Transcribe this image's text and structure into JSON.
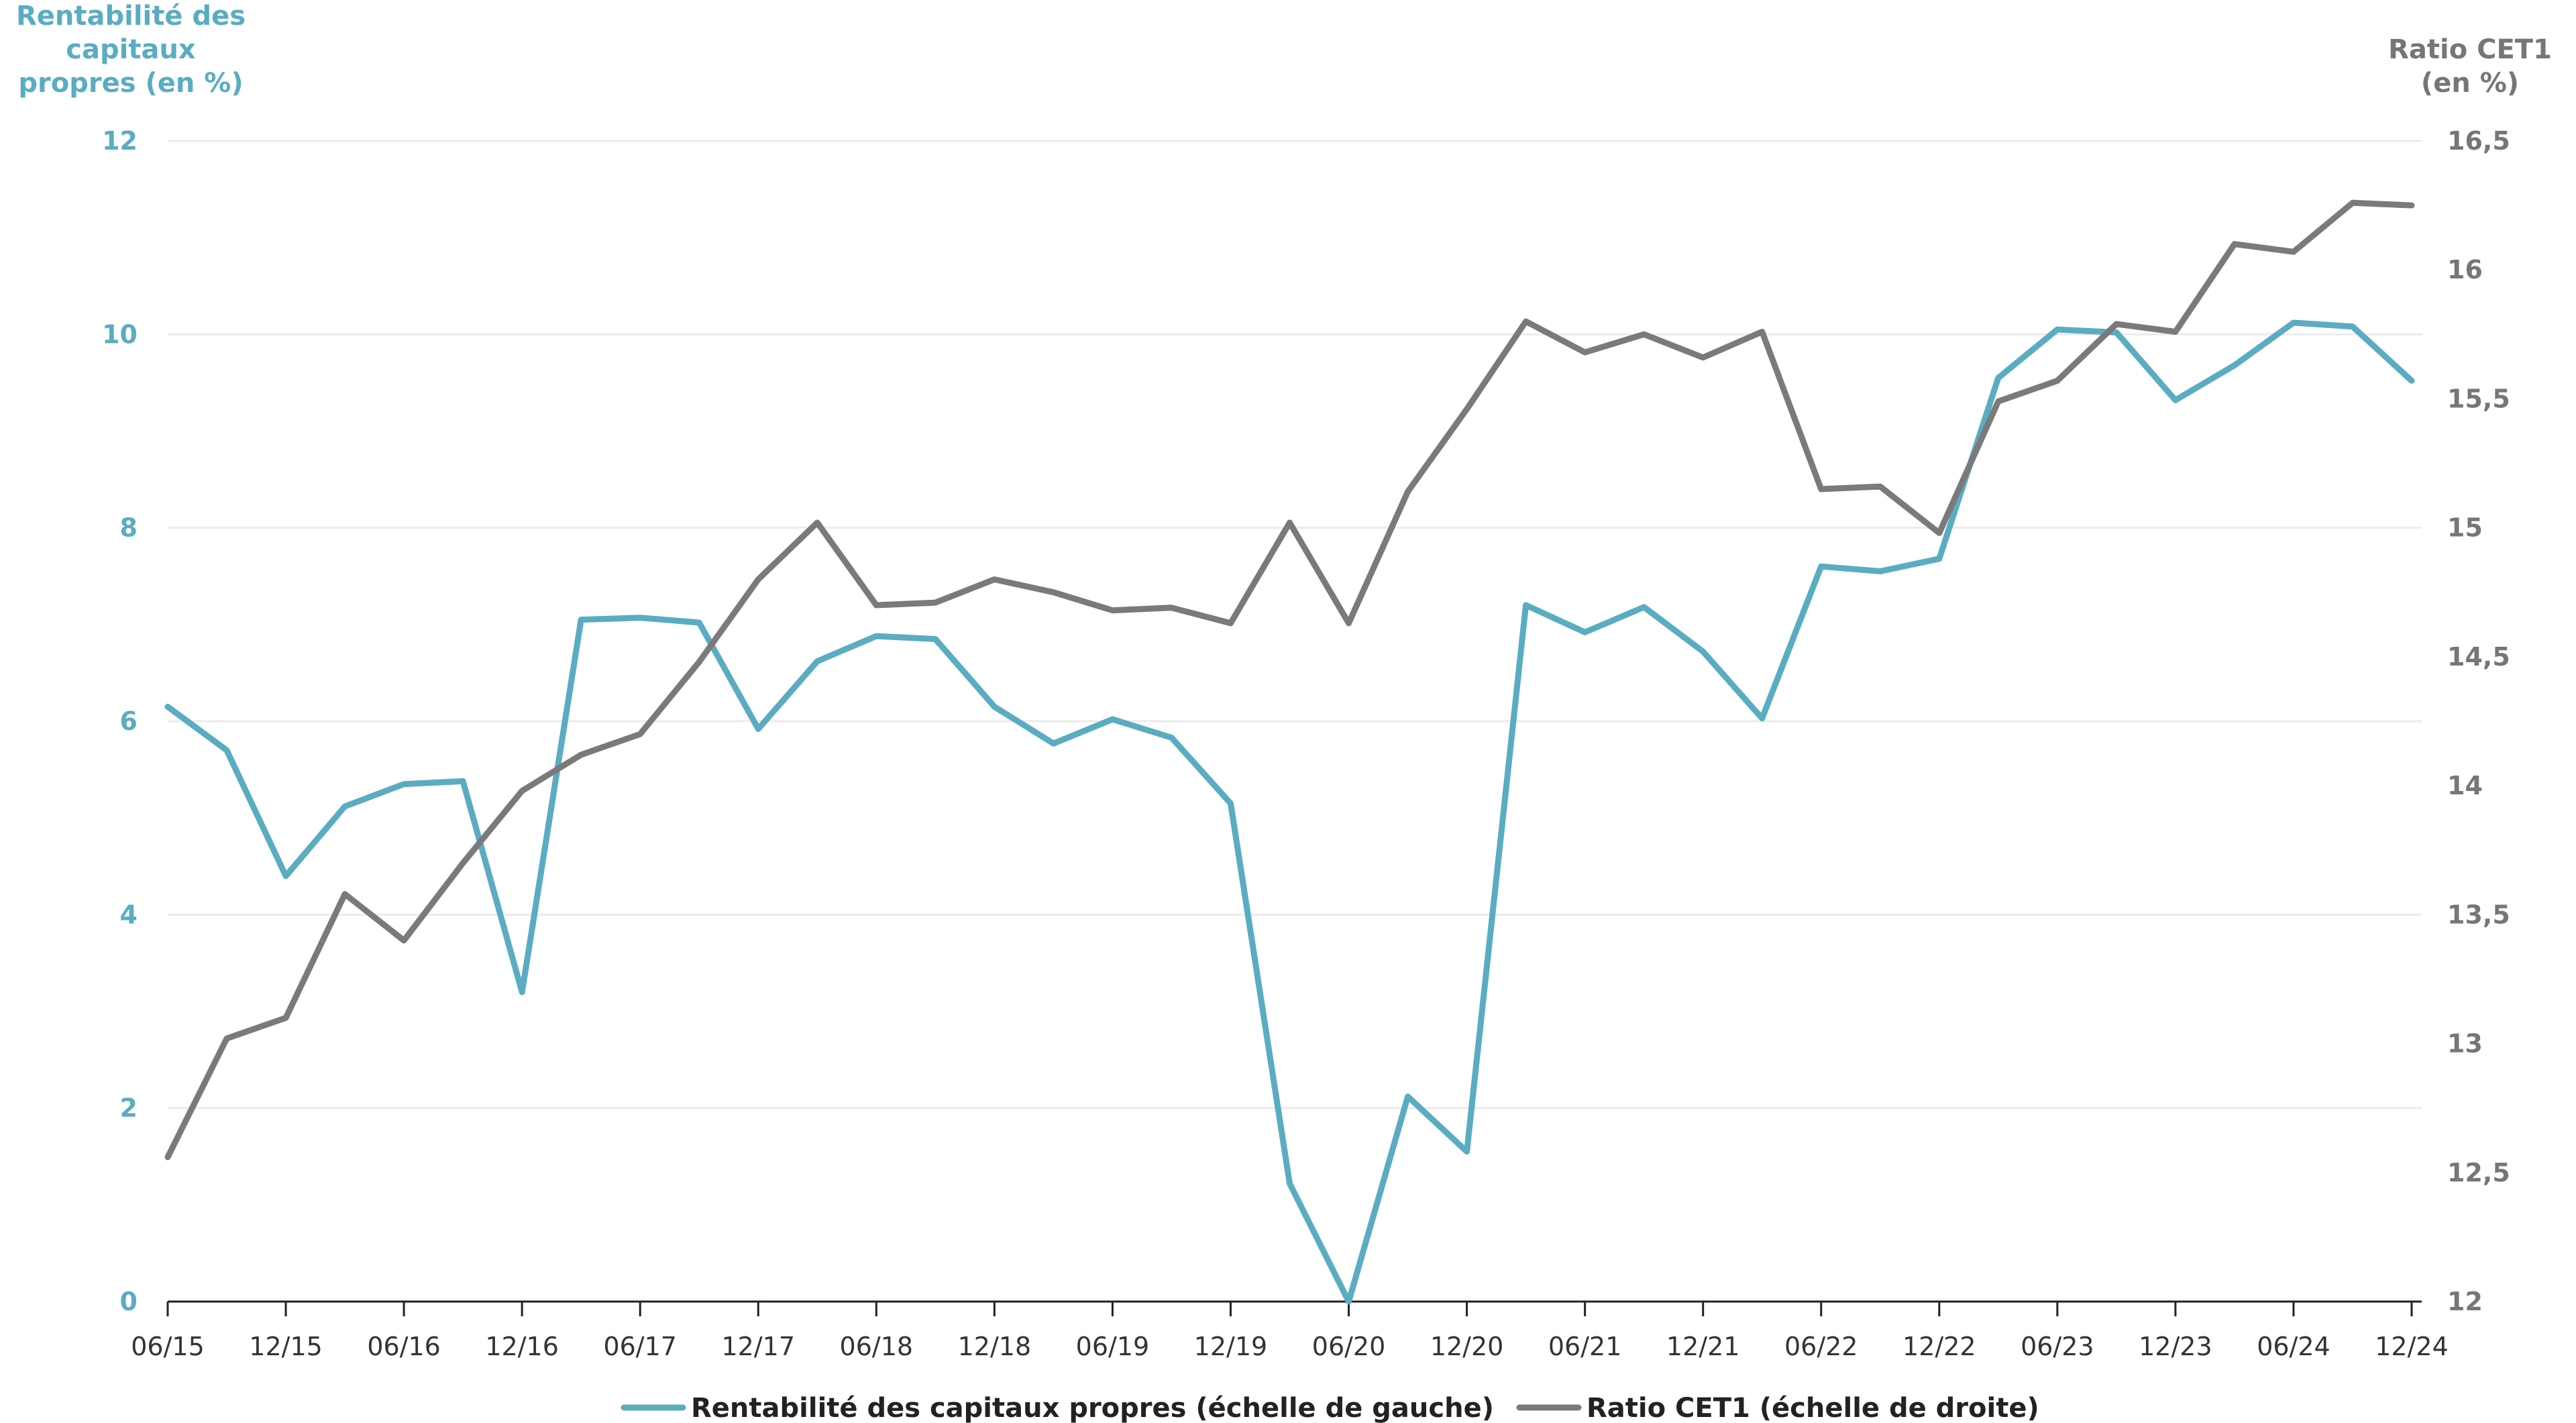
{
  "chart_data": {
    "type": "line",
    "y_left_title": [
      "Rentabilité des",
      "capitaux",
      "propres (en %)"
    ],
    "y_right_title": [
      "Ratio CET1",
      "(en %)"
    ],
    "y_left_ticks": [
      "0",
      "2",
      "4",
      "6",
      "8",
      "10",
      "12"
    ],
    "y_right_ticks": [
      "12",
      "12,5",
      "13",
      "13,5",
      "14",
      "14,5",
      "15",
      "15,5",
      "16",
      "16,5"
    ],
    "ylim_left": [
      0,
      12
    ],
    "ylim_right": [
      12,
      16.5
    ],
    "x_tick_labels": [
      "06/15",
      "12/15",
      "06/16",
      "12/16",
      "06/17",
      "12/17",
      "06/18",
      "12/18",
      "06/19",
      "12/19",
      "06/20",
      "12/20",
      "06/21",
      "12/21",
      "06/22",
      "12/22",
      "06/23",
      "12/23",
      "06/24",
      "12/24"
    ],
    "x_quarters": [
      "06/15",
      "09/15",
      "12/15",
      "03/16",
      "06/16",
      "09/16",
      "12/16",
      "03/17",
      "06/17",
      "09/17",
      "12/17",
      "03/18",
      "06/18",
      "09/18",
      "12/18",
      "03/19",
      "06/19",
      "09/19",
      "12/19",
      "03/20",
      "06/20",
      "09/20",
      "12/20",
      "03/21",
      "06/21",
      "09/21",
      "12/21",
      "03/22",
      "06/22",
      "09/22",
      "12/22",
      "03/23",
      "06/23",
      "09/23",
      "12/23",
      "03/24",
      "06/24",
      "09/24",
      "12/24"
    ],
    "grid": true,
    "legend_position": "bottom",
    "series": [
      {
        "name": "Rentabilité des capitaux propres (échelle de gauche)",
        "axis": "left",
        "color": "#5aacc2",
        "values": [
          6.15,
          5.7,
          4.4,
          5.12,
          5.35,
          5.38,
          3.2,
          7.05,
          7.07,
          7.02,
          5.92,
          6.62,
          6.88,
          6.85,
          6.15,
          5.77,
          6.02,
          5.83,
          5.15,
          1.22,
          0.0,
          2.12,
          1.55,
          7.2,
          6.92,
          7.18,
          6.72,
          6.03,
          7.6,
          7.55,
          7.68,
          9.55,
          10.05,
          10.02,
          9.32,
          9.68,
          10.12,
          10.08,
          9.52
        ]
      },
      {
        "name": "Ratio CET1 (échelle de droite)",
        "axis": "right",
        "color": "#7a7a7a",
        "values": [
          12.56,
          13.02,
          13.1,
          13.58,
          13.4,
          13.7,
          13.98,
          14.12,
          14.2,
          14.48,
          14.8,
          15.02,
          14.7,
          14.71,
          14.8,
          14.75,
          14.68,
          14.69,
          14.63,
          15.02,
          14.63,
          15.14,
          15.46,
          15.8,
          15.68,
          15.75,
          15.66,
          15.76,
          15.15,
          15.16,
          14.98,
          15.49,
          15.57,
          15.79,
          15.76,
          16.1,
          16.07,
          16.26,
          16.25
        ]
      }
    ]
  }
}
